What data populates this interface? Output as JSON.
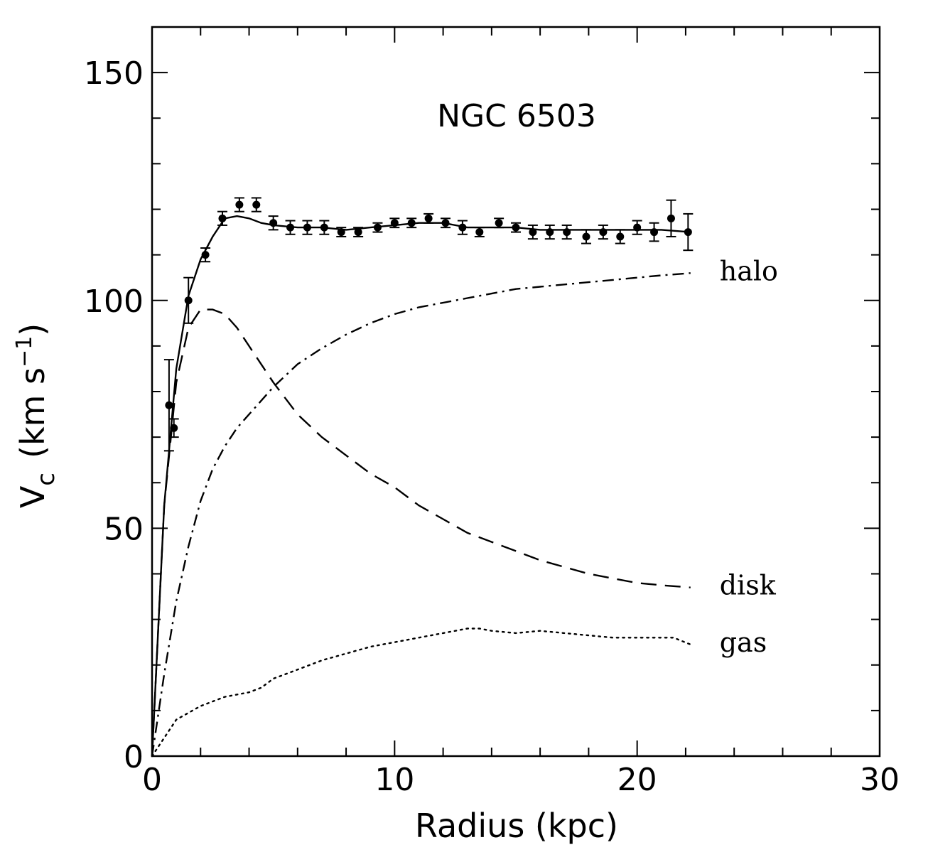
{
  "chart_data": {
    "type": "line",
    "title": "NGC 6503",
    "xlabel": "Radius (kpc)",
    "ylabel": "V",
    "ylabel_sub": "c",
    "ylabel_units_pre": "(km s",
    "ylabel_units_sup": "−1",
    "ylabel_units_post": ")",
    "xlim": [
      0,
      30
    ],
    "ylim": [
      0,
      160
    ],
    "xticks": [
      0,
      10,
      20,
      30
    ],
    "yticks": [
      0,
      50,
      100,
      150
    ],
    "x_minor_step": 2,
    "y_minor_step": 10,
    "observed": {
      "name": "data",
      "points": [
        {
          "x": 0.7,
          "y": 77,
          "err": 10
        },
        {
          "x": 0.9,
          "y": 72,
          "err": 2
        },
        {
          "x": 1.5,
          "y": 100,
          "err": 5
        },
        {
          "x": 2.2,
          "y": 110,
          "err": 1.5
        },
        {
          "x": 2.9,
          "y": 118,
          "err": 1.5
        },
        {
          "x": 3.6,
          "y": 121,
          "err": 1.5
        },
        {
          "x": 4.3,
          "y": 121,
          "err": 1.5
        },
        {
          "x": 5.0,
          "y": 117,
          "err": 1.5
        },
        {
          "x": 5.7,
          "y": 116,
          "err": 1.5
        },
        {
          "x": 6.4,
          "y": 116,
          "err": 1.5
        },
        {
          "x": 7.1,
          "y": 116,
          "err": 1.5
        },
        {
          "x": 7.8,
          "y": 115,
          "err": 1
        },
        {
          "x": 8.5,
          "y": 115,
          "err": 1
        },
        {
          "x": 9.3,
          "y": 116,
          "err": 1
        },
        {
          "x": 10.0,
          "y": 117,
          "err": 1
        },
        {
          "x": 10.7,
          "y": 117,
          "err": 1
        },
        {
          "x": 11.4,
          "y": 118,
          "err": 1
        },
        {
          "x": 12.1,
          "y": 117,
          "err": 1
        },
        {
          "x": 12.8,
          "y": 116,
          "err": 1.5
        },
        {
          "x": 13.5,
          "y": 115,
          "err": 1
        },
        {
          "x": 14.3,
          "y": 117,
          "err": 1
        },
        {
          "x": 15.0,
          "y": 116,
          "err": 1
        },
        {
          "x": 15.7,
          "y": 115,
          "err": 1.5
        },
        {
          "x": 16.4,
          "y": 115,
          "err": 1.5
        },
        {
          "x": 17.1,
          "y": 115,
          "err": 1.5
        },
        {
          "x": 17.9,
          "y": 114,
          "err": 1.5
        },
        {
          "x": 18.6,
          "y": 115,
          "err": 1.5
        },
        {
          "x": 19.3,
          "y": 114,
          "err": 1.5
        },
        {
          "x": 20.0,
          "y": 116,
          "err": 1.5
        },
        {
          "x": 20.7,
          "y": 115,
          "err": 2
        },
        {
          "x": 21.4,
          "y": 118,
          "err": 4
        },
        {
          "x": 22.1,
          "y": 115,
          "err": 4
        }
      ]
    },
    "series": [
      {
        "name": "total",
        "label": "",
        "style": "solid",
        "x": [
          0,
          0.5,
          1.0,
          1.5,
          2.0,
          2.5,
          3.0,
          3.5,
          4.0,
          4.5,
          5,
          6,
          7,
          8,
          9,
          10,
          11,
          12,
          13,
          14,
          15,
          16,
          17,
          18,
          19,
          20,
          21,
          22.2
        ],
        "y": [
          0,
          55,
          85,
          101,
          109,
          114,
          118,
          118.5,
          118,
          117,
          116.5,
          116,
          116,
          115.5,
          116,
          116.5,
          117,
          117,
          116,
          116,
          116,
          115.5,
          115.5,
          115.5,
          115.5,
          115.5,
          115.5,
          115
        ]
      },
      {
        "name": "halo",
        "label": "halo",
        "style": "dashdot",
        "x": [
          0,
          0.5,
          1,
          1.5,
          2,
          2.5,
          3,
          3.5,
          4,
          5,
          6,
          7,
          8,
          9,
          10,
          11,
          12,
          13,
          14,
          15,
          16,
          17,
          18,
          19,
          20,
          21,
          22.2
        ],
        "y": [
          0,
          18,
          34,
          46,
          56,
          63,
          68,
          72,
          75,
          81,
          86,
          89.5,
          92.5,
          95,
          97,
          98.5,
          99.5,
          100.5,
          101.5,
          102.5,
          103,
          103.5,
          104,
          104.5,
          105,
          105.5,
          106
        ]
      },
      {
        "name": "disk",
        "label": "disk",
        "style": "dashed",
        "x": [
          0,
          0.5,
          1,
          1.5,
          2,
          2.5,
          3,
          3.5,
          4,
          5,
          6,
          7,
          8,
          9,
          10,
          11,
          12,
          13,
          14,
          15,
          16,
          17,
          18,
          19,
          20,
          21,
          22.2
        ],
        "y": [
          0,
          55,
          82,
          94,
          98,
          98,
          97,
          94,
          90,
          82,
          75,
          70,
          66,
          62,
          59,
          55,
          52,
          49,
          47,
          45,
          43,
          41.5,
          40,
          39,
          38,
          37.5,
          37
        ]
      },
      {
        "name": "gas",
        "label": "gas",
        "style": "dotted",
        "x": [
          0,
          1,
          2,
          3,
          4,
          4.5,
          5,
          6,
          7,
          8,
          9,
          10,
          11,
          12,
          13,
          13.5,
          14,
          15,
          16,
          17,
          18,
          19,
          20,
          21,
          21.5,
          22.2
        ],
        "y": [
          0,
          8,
          11,
          13,
          14,
          15,
          17,
          19,
          21,
          22.5,
          24,
          25,
          26,
          27,
          28,
          28,
          27.5,
          27,
          27.5,
          27,
          26.5,
          26,
          26,
          26,
          26,
          24.5
        ]
      }
    ]
  }
}
